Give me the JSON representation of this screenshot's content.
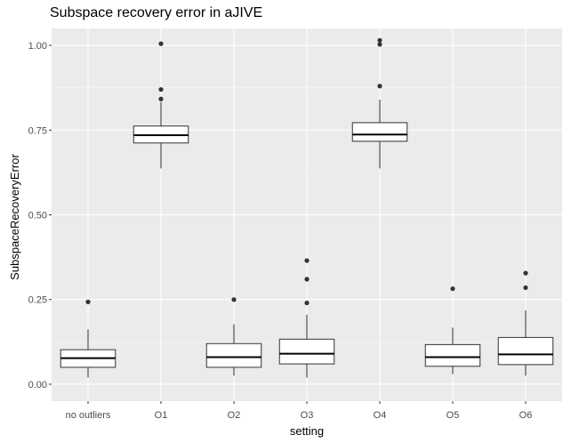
{
  "chart_data": {
    "type": "box",
    "title": "Subspace recovery error in aJIVE",
    "xlabel": "setting",
    "ylabel": "SubspaceRecoveryError",
    "categories": [
      "no outliers",
      "O1",
      "O2",
      "O3",
      "O4",
      "O5",
      "O6"
    ],
    "ylim": [
      -0.05,
      1.05
    ],
    "yticks": [
      0.0,
      0.25,
      0.5,
      0.75,
      1.0
    ],
    "ytick_labels": [
      "0.00",
      "0.25",
      "0.50",
      "0.75",
      "1.00"
    ],
    "grid": true,
    "legend": "none",
    "boxes": [
      {
        "category": "no outliers",
        "whisker_low": 0.02,
        "q1": 0.05,
        "median": 0.077,
        "q3": 0.102,
        "whisker_high": 0.162,
        "outliers": [
          0.243
        ]
      },
      {
        "category": "O1",
        "whisker_low": 0.637,
        "q1": 0.712,
        "median": 0.735,
        "q3": 0.762,
        "whisker_high": 0.833,
        "outliers": [
          0.842,
          0.87,
          1.005
        ]
      },
      {
        "category": "O2",
        "whisker_low": 0.025,
        "q1": 0.05,
        "median": 0.08,
        "q3": 0.12,
        "whisker_high": 0.177,
        "outliers": [
          0.25
        ]
      },
      {
        "category": "O3",
        "whisker_low": 0.02,
        "q1": 0.06,
        "median": 0.09,
        "q3": 0.133,
        "whisker_high": 0.205,
        "outliers": [
          0.24,
          0.31,
          0.365
        ]
      },
      {
        "category": "O4",
        "whisker_low": 0.637,
        "q1": 0.717,
        "median": 0.737,
        "q3": 0.772,
        "whisker_high": 0.84,
        "outliers": [
          0.88,
          1.003,
          1.015
        ]
      },
      {
        "category": "O5",
        "whisker_low": 0.03,
        "q1": 0.053,
        "median": 0.08,
        "q3": 0.117,
        "whisker_high": 0.167,
        "outliers": [
          0.282
        ]
      },
      {
        "category": "O6",
        "whisker_low": 0.025,
        "q1": 0.058,
        "median": 0.088,
        "q3": 0.138,
        "whisker_high": 0.218,
        "outliers": [
          0.285,
          0.328
        ]
      }
    ],
    "colors": {
      "panel_background": "#ebebeb",
      "grid_major": "#ffffff",
      "grid_minor": "#f5f5f5",
      "box_fill": "#ffffff",
      "box_stroke": "#333333",
      "outlier": "#333333",
      "tick_text": "#4d4d4d",
      "axis_text": "#000000"
    }
  }
}
